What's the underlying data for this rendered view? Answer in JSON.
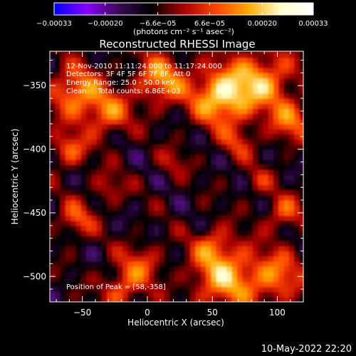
{
  "chart_data": {
    "type": "heatmap",
    "title": "Reconstructed RHESSI Image",
    "xlabel": "Heliocentric X (arcsec)",
    "ylabel": "Heliocentric Y (arcsec)",
    "xlim": [
      -75,
      120
    ],
    "ylim": [
      -520,
      -323
    ],
    "x_ticks": [
      -50,
      0,
      50,
      100
    ],
    "y_ticks": [
      -350,
      -400,
      -450,
      -500
    ],
    "x_tick_labels": [
      "−50",
      "0",
      "50",
      "100"
    ],
    "y_tick_labels": [
      "−350",
      "−400",
      "−450",
      "−500"
    ],
    "colorbar": {
      "range": [
        -0.00033,
        0.00033
      ],
      "ticks": [
        -0.00033,
        -0.0002,
        -6.6e-05,
        6.6e-05,
        0.0002,
        0.00033
      ],
      "tick_labels": [
        "−0.00033",
        "−0.00020",
        "−6.6e−05",
        "6.6e−05",
        "0.00020",
        "0.00033"
      ],
      "unit_label": "(photons cm⁻² s⁻¹ asec⁻²)",
      "colors": [
        "#0000ff",
        "#8800ff",
        "#3a0a55",
        "#000000",
        "#aa0000",
        "#ff4400",
        "#ffaa00",
        "#ffffcc",
        "#ffffff"
      ]
    },
    "annotations": {
      "time_range": "12-Nov-2010 11:11:24.000 to 11:17:24.000",
      "detectors": "Detectors: 3F 4F 5F 6F 7F 8F, Att 0",
      "energy_range": "Energy Range: 25.0 - 50.0 keV",
      "method_counts": "Clean     Total counts: 6.86E+03",
      "peak": "Position of Peak = [58,-358]"
    },
    "peak_position": [
      58,
      -358
    ],
    "grid": false,
    "colorbar_placement": "top"
  },
  "footer": {
    "date_stamp": "10-May-2022 22:20"
  }
}
